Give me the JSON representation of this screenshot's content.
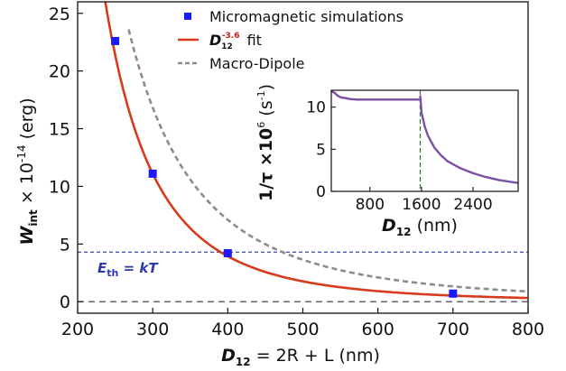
{
  "chart_data": [
    {
      "type": "scatter",
      "xlim": [
        200,
        800
      ],
      "ylim": [
        -1,
        26
      ],
      "x_ticks": [
        200,
        300,
        400,
        500,
        600,
        700,
        800
      ],
      "y_ticks": [
        0,
        5,
        10,
        15,
        20,
        25
      ],
      "xlabel": {
        "var": "D",
        "sub": "12",
        "rest": " = 2R + L (nm)"
      },
      "ylabel": {
        "var": "W",
        "sub": "int",
        "mult": " × 10",
        "exp": "-14",
        "unit": " (erg)"
      },
      "series": [
        {
          "name": "Micromagnetic simulations",
          "kind": "markers",
          "color": "#1a1aff",
          "x": [
            250,
            300,
            400,
            700
          ],
          "y": [
            22.6,
            11.1,
            4.2,
            0.7
          ]
        },
        {
          "name": "fit",
          "name_var": "D",
          "name_sub": "12",
          "name_sup": "-3.6",
          "kind": "fit_line",
          "color": "#d83a1c",
          "model": "power",
          "exponent": -3.6,
          "reference": {
            "x": 300,
            "y": 11.1
          },
          "x_range": [
            215,
            800
          ]
        },
        {
          "name": "Macro-Dipole",
          "kind": "dashed_line",
          "color": "#8c8c8c",
          "model": "power",
          "exponent": -3.0,
          "reference": {
            "x": 400,
            "y": 7.1
          },
          "x_range": [
            268,
            800
          ]
        }
      ],
      "reference_lines": [
        {
          "label": "E",
          "label_sub": "th",
          "label_rest": " = kT",
          "y": 4.3,
          "color": "#2e3aa8"
        },
        {
          "y": 0,
          "color": "#333333"
        }
      ],
      "legend_position": "top-right"
    },
    {
      "type": "line",
      "inset": true,
      "xlim": [
        200,
        3100
      ],
      "ylim": [
        0,
        12
      ],
      "x_ticks": [
        800,
        1600,
        2400
      ],
      "y_ticks": [
        0,
        5,
        10
      ],
      "xlabel": {
        "var": "D",
        "sub": "12",
        "rest": " (nm)"
      },
      "ylabel": {
        "text": "1/τ ×10",
        "exp": "6",
        "unit": " (s",
        "unit_exp": "-1",
        "unit_close": ")"
      },
      "color": "#7b4fa6",
      "segments": [
        {
          "x": [
            200,
            250,
            300,
            350,
            400,
            500,
            600,
            700,
            800,
            1000,
            1200,
            1400,
            1580
          ],
          "y": [
            11.9,
            11.7,
            11.35,
            11.15,
            11.1,
            10.95,
            10.9,
            10.9,
            10.9,
            10.9,
            10.9,
            10.9,
            10.9
          ]
        },
        {
          "x": [
            1580,
            1600,
            1650,
            1700,
            1800,
            1900,
            2000,
            2200,
            2400,
            2600,
            2800,
            3000,
            3100
          ],
          "y": [
            11.4,
            9.4,
            7.7,
            6.6,
            5.2,
            4.3,
            3.6,
            2.75,
            2.15,
            1.7,
            1.35,
            1.1,
            1.0
          ]
        }
      ],
      "vline": {
        "x": 1580,
        "color": "#3a7a3a",
        "style": "dashed"
      }
    }
  ]
}
